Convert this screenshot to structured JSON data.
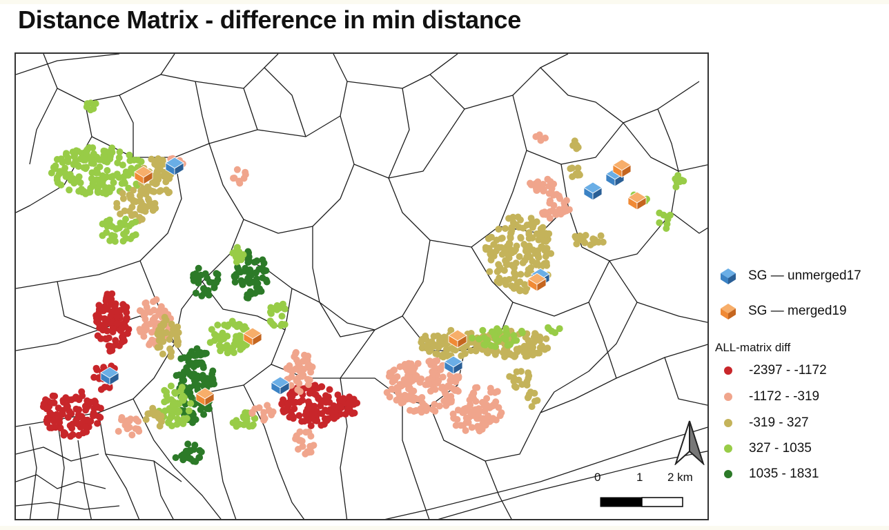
{
  "title": "Distance Matrix - difference in min distance",
  "legend": {
    "site_items": [
      {
        "label": "SG — unmerged17",
        "icon": "blue-cube-icon",
        "color": "#3b82c4"
      },
      {
        "label": "SG — merged19",
        "icon": "orange-cube-icon",
        "color": "#f08a35"
      }
    ],
    "class_title": "ALL-matrix diff",
    "classes": [
      {
        "label": "-2397 - -1172",
        "color": "#c8262a"
      },
      {
        "label": "-1172 - -319",
        "color": "#f0a58c"
      },
      {
        "label": "-319 - 327",
        "color": "#c4b35a"
      },
      {
        "label": "327 - 1035",
        "color": "#98cc47"
      },
      {
        "label": "1035 - 1831",
        "color": "#2c7a28"
      }
    ]
  },
  "scale_bar": {
    "labels": [
      "0",
      "1",
      "2 km"
    ]
  },
  "north_arrow": {
    "icon": "north-arrow-icon"
  },
  "colors": {
    "boundary": "#1c1c1c",
    "frame": "#333333",
    "background": "#ffffff"
  }
}
